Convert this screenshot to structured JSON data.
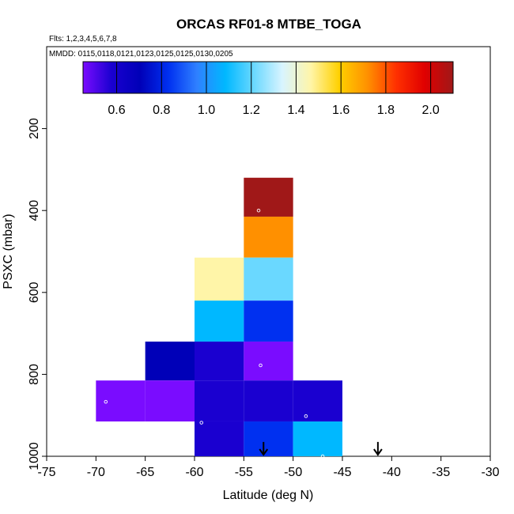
{
  "chart_data": {
    "type": "heatmap",
    "title": "ORCAS RF01-8 MTBE_TOGA",
    "flights_label": "Flts: 1,2,3,4,5,6,7,8",
    "dates_label": "MMDD: 0115,0118,0121,0123,0125,0125,0130,0205",
    "xlabel": "Latitude (deg N)",
    "ylabel": "PSXC (mbar)",
    "xlim": [
      -75,
      -30
    ],
    "ylim": [
      1000,
      0
    ],
    "x_ticks": [
      -75,
      -70,
      -65,
      -60,
      -55,
      -50,
      -45,
      -40,
      -35,
      -30
    ],
    "x_tick_labels": [
      "-75",
      "-70",
      "-65",
      "-60",
      "-55",
      "-50",
      "-45",
      "-40",
      "-35",
      "-30"
    ],
    "y_ticks": [
      200,
      400,
      600,
      800,
      1000
    ],
    "y_tick_labels": [
      "200",
      "400",
      "600",
      "800",
      "1000"
    ],
    "colorbar": {
      "min": 0.45,
      "max": 2.1,
      "ticks": [
        0.6,
        0.8,
        1.0,
        1.2,
        1.4,
        1.6,
        1.8,
        2.0
      ],
      "tick_labels": [
        "0.6",
        "0.8",
        "1.0",
        "1.2",
        "1.4",
        "1.6",
        "1.8",
        "2.0"
      ],
      "colors": [
        "#7a0cff",
        "#1a00d0",
        "#0000b8",
        "#0030f0",
        "#2f80ff",
        "#00b8ff",
        "#6ad8ff",
        "#d8f4ff",
        "#fff5a8",
        "#ffd000",
        "#ff9000",
        "#ff3000",
        "#e00000",
        "#a01818"
      ],
      "boundaries": [
        0.6,
        0.8,
        1.0,
        1.2,
        1.4,
        1.6,
        1.8,
        2.0
      ]
    },
    "cells": [
      {
        "lat_min": -55,
        "lat_max": -50,
        "p_top": 320,
        "p_bottom": 415,
        "value": 2.05
      },
      {
        "lat_min": -55,
        "lat_max": -50,
        "p_top": 415,
        "p_bottom": 515,
        "value": 1.72
      },
      {
        "lat_min": -60,
        "lat_max": -55,
        "p_top": 515,
        "p_bottom": 620,
        "value": 1.45
      },
      {
        "lat_min": -55,
        "lat_max": -50,
        "p_top": 515,
        "p_bottom": 620,
        "value": 1.25
      },
      {
        "lat_min": -60,
        "lat_max": -55,
        "p_top": 620,
        "p_bottom": 720,
        "value": 1.05
      },
      {
        "lat_min": -55,
        "lat_max": -50,
        "p_top": 620,
        "p_bottom": 720,
        "value": 0.92
      },
      {
        "lat_min": -65,
        "lat_max": -60,
        "p_top": 720,
        "p_bottom": 815,
        "value": 0.72
      },
      {
        "lat_min": -60,
        "lat_max": -55,
        "p_top": 720,
        "p_bottom": 815,
        "value": 0.63
      },
      {
        "lat_min": -55,
        "lat_max": -50,
        "p_top": 720,
        "p_bottom": 815,
        "value": 0.53
      },
      {
        "lat_min": -70,
        "lat_max": -65,
        "p_top": 815,
        "p_bottom": 915,
        "value": 0.5
      },
      {
        "lat_min": -65,
        "lat_max": -60,
        "p_top": 815,
        "p_bottom": 915,
        "value": 0.55
      },
      {
        "lat_min": -60,
        "lat_max": -55,
        "p_top": 815,
        "p_bottom": 915,
        "value": 0.6
      },
      {
        "lat_min": -55,
        "lat_max": -50,
        "p_top": 815,
        "p_bottom": 915,
        "value": 0.62
      },
      {
        "lat_min": -50,
        "lat_max": -45,
        "p_top": 815,
        "p_bottom": 915,
        "value": 0.68
      },
      {
        "lat_min": -60,
        "lat_max": -55,
        "p_top": 915,
        "p_bottom": 1015,
        "value": 0.68
      },
      {
        "lat_min": -55,
        "lat_max": -50,
        "p_top": 915,
        "p_bottom": 1015,
        "value": 0.92
      },
      {
        "lat_min": -50,
        "lat_max": -45,
        "p_top": 915,
        "p_bottom": 1015,
        "value": 1.12
      }
    ],
    "sample_points": [
      {
        "lat": -53.5,
        "p": 400
      },
      {
        "lat": -53.3,
        "p": 778
      },
      {
        "lat": -69.0,
        "p": 867
      },
      {
        "lat": -48.7,
        "p": 902
      },
      {
        "lat": -59.3,
        "p": 918
      },
      {
        "lat": -47.0,
        "p": 1000
      }
    ],
    "arrows": [
      {
        "lat": -53.0,
        "p_from": 965,
        "p_to": 1000
      },
      {
        "lat": -41.4,
        "p_from": 965,
        "p_to": 1000
      }
    ]
  }
}
